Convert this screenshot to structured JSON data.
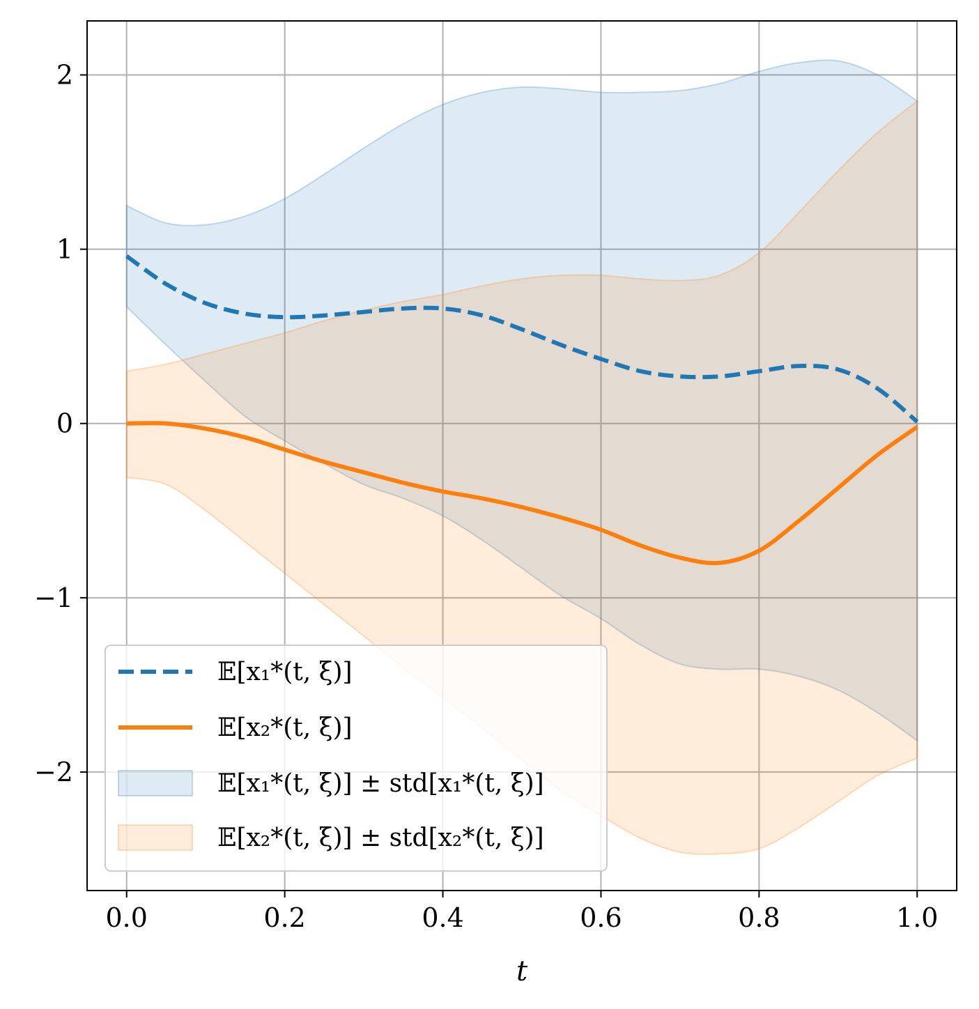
{
  "chart_data": {
    "type": "line",
    "title": "",
    "xlabel": "t",
    "ylabel": "",
    "xlim": [
      -0.05,
      1.05
    ],
    "ylim": [
      -2.68,
      2.31
    ],
    "xticks": [
      0.0,
      0.2,
      0.4,
      0.6,
      0.8,
      1.0
    ],
    "xtick_labels": [
      "0.0",
      "0.2",
      "0.4",
      "0.6",
      "0.8",
      "1.0"
    ],
    "yticks": [
      2,
      1,
      0,
      -1,
      -2
    ],
    "ytick_labels": [
      "2",
      "1",
      "0",
      "−1",
      "−2"
    ],
    "grid": true,
    "legend_position": "lower-left",
    "colors": {
      "series1": "#1f77b4",
      "series2": "#ff7f0e",
      "band1": "#1f77b4",
      "band2": "#ff7f0e",
      "grid": "#b0b0b0"
    },
    "x": [
      0.0,
      0.05,
      0.1,
      0.15,
      0.2,
      0.25,
      0.3,
      0.35,
      0.4,
      0.45,
      0.5,
      0.55,
      0.6,
      0.65,
      0.7,
      0.75,
      0.8,
      0.85,
      0.9,
      0.95,
      1.0
    ],
    "series": [
      {
        "name": "𝔼[x₁*(t, ξ)]",
        "style": "dashed",
        "values": [
          0.96,
          0.8,
          0.69,
          0.63,
          0.61,
          0.62,
          0.64,
          0.66,
          0.66,
          0.62,
          0.54,
          0.45,
          0.37,
          0.3,
          0.27,
          0.27,
          0.3,
          0.33,
          0.31,
          0.2,
          0.01
        ]
      },
      {
        "name": "𝔼[x₂*(t, ξ)]",
        "style": "solid",
        "values": [
          0.0,
          0.0,
          -0.03,
          -0.08,
          -0.15,
          -0.22,
          -0.28,
          -0.34,
          -0.39,
          -0.43,
          -0.48,
          -0.54,
          -0.61,
          -0.7,
          -0.77,
          -0.8,
          -0.73,
          -0.56,
          -0.37,
          -0.18,
          -0.02
        ]
      }
    ],
    "bands": [
      {
        "name": "𝔼[x₁*(t, ξ)] ± std[x₁*(t, ξ)]",
        "upper": [
          1.25,
          1.15,
          1.14,
          1.19,
          1.29,
          1.43,
          1.58,
          1.72,
          1.83,
          1.9,
          1.93,
          1.92,
          1.9,
          1.9,
          1.91,
          1.95,
          2.02,
          2.07,
          2.08,
          2.0,
          1.85
        ],
        "lower": [
          0.67,
          0.45,
          0.24,
          0.04,
          -0.1,
          -0.23,
          -0.35,
          -0.43,
          -0.53,
          -0.67,
          -0.83,
          -0.99,
          -1.12,
          -1.27,
          -1.38,
          -1.41,
          -1.41,
          -1.45,
          -1.53,
          -1.66,
          -1.82
        ]
      },
      {
        "name": "𝔼[x₂*(t, ξ)] ± std[x₂*(t, ξ)]",
        "upper": [
          0.3,
          0.34,
          0.4,
          0.46,
          0.52,
          0.59,
          0.65,
          0.7,
          0.74,
          0.79,
          0.83,
          0.85,
          0.85,
          0.83,
          0.82,
          0.85,
          0.98,
          1.21,
          1.45,
          1.67,
          1.85
        ],
        "lower": [
          -0.31,
          -0.35,
          -0.5,
          -0.68,
          -0.86,
          -1.04,
          -1.22,
          -1.4,
          -1.57,
          -1.75,
          -1.93,
          -2.11,
          -2.25,
          -2.38,
          -2.46,
          -2.47,
          -2.44,
          -2.32,
          -2.17,
          -2.02,
          -1.92
        ]
      }
    ]
  }
}
